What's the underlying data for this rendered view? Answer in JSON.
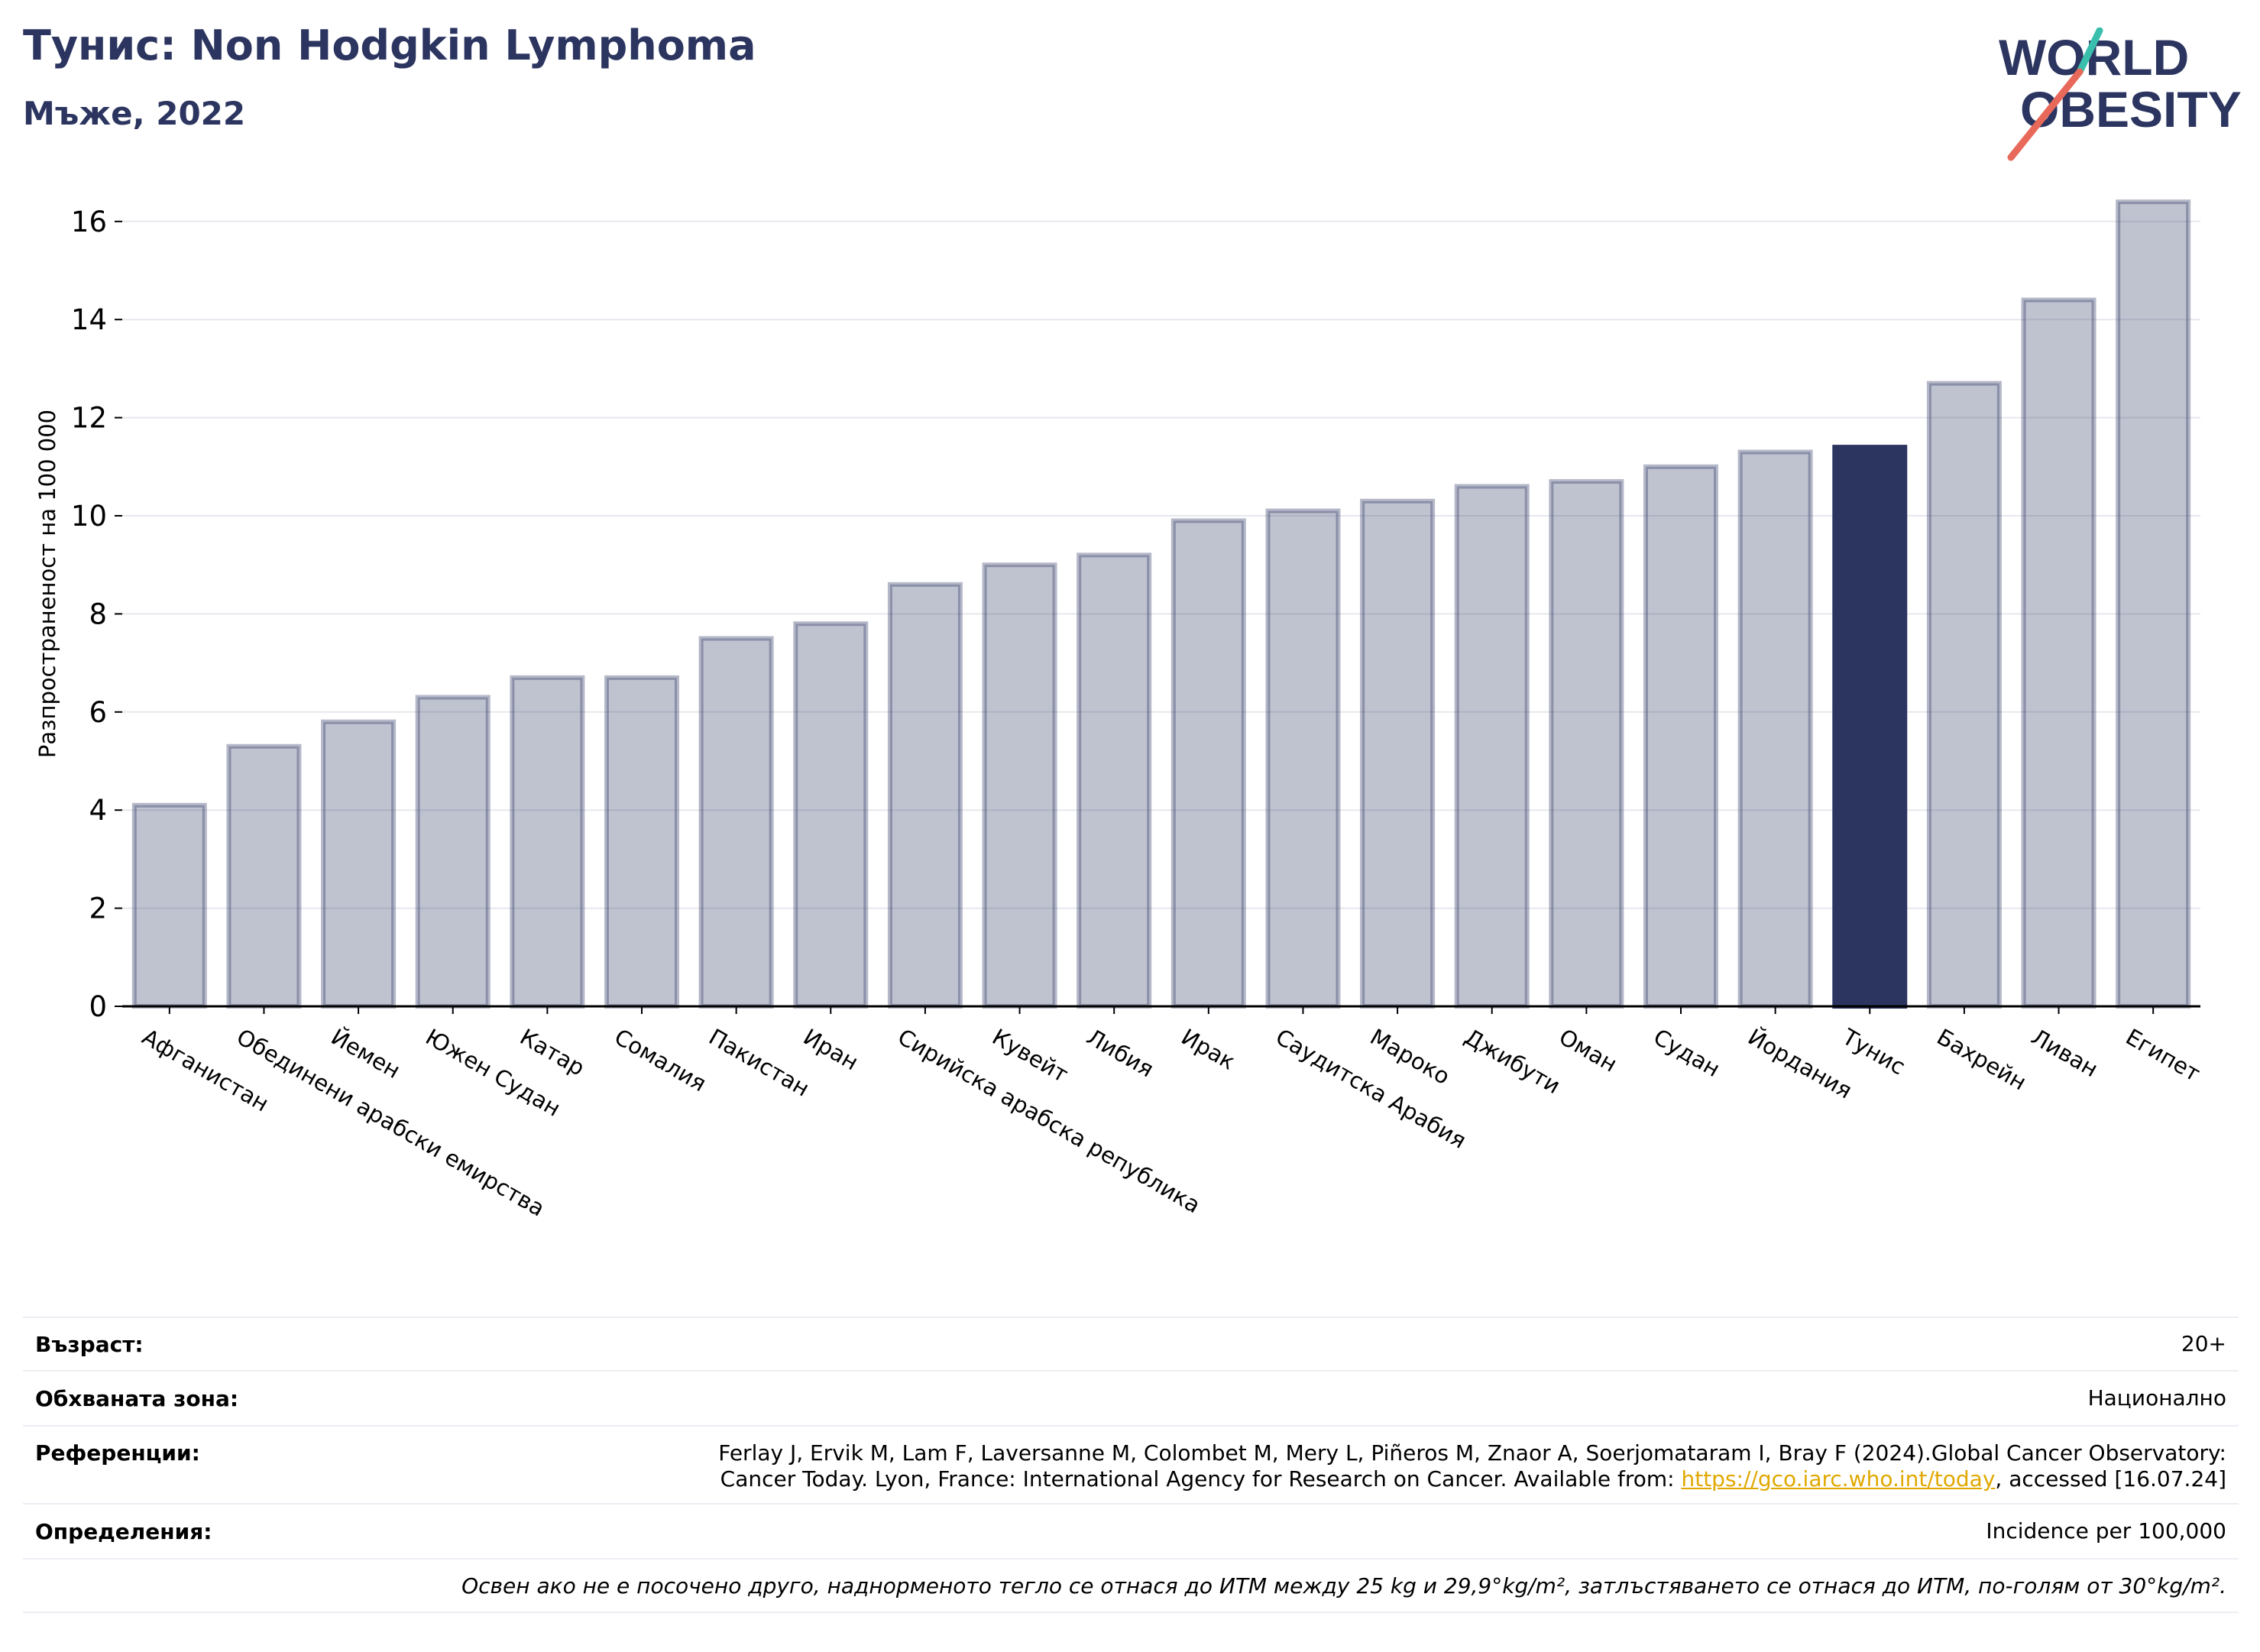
{
  "header": {
    "title": "Тунис: Non Hodgkin Lymphoma",
    "subtitle": "Мъже, 2022"
  },
  "logo": {
    "line1": "WORLD",
    "line2": "OBESITY",
    "colors": {
      "text": "#2b3560",
      "slash_top": "#3bbfad",
      "slash_bottom": "#e8685a"
    }
  },
  "chart_data": {
    "type": "bar",
    "title": "",
    "xlabel": "",
    "ylabel": "Разпространеност  на 100 000",
    "ylim": [
      0,
      17
    ],
    "yticks": [
      0,
      2,
      4,
      6,
      8,
      10,
      12,
      14,
      16
    ],
    "grid": true,
    "highlight": "Тунис",
    "colors": {
      "bar": "#2b3560",
      "bar_fill_opacity": 0.3,
      "highlight": "#2b3560",
      "grid": "#e6e8ee",
      "axis": "#000000"
    },
    "categories": [
      "Афганистан",
      "Обединени арабски емирства",
      "Йемен",
      "Южен Судан",
      "Катар",
      "Сомалия",
      "Пакистан",
      "Иран",
      "Сирийска арабска република",
      "Кувейт",
      "Либия",
      "Ирак",
      "Саудитска Арабия",
      "Мароко",
      "Джибути",
      "Оман",
      "Судан",
      "Йордания",
      "Тунис",
      "Бахрейн",
      "Ливан",
      "Египет"
    ],
    "values": [
      4.1,
      5.3,
      5.8,
      6.3,
      6.7,
      6.7,
      7.5,
      7.8,
      8.6,
      9.0,
      9.2,
      9.9,
      10.1,
      10.3,
      10.6,
      10.7,
      11.0,
      11.3,
      11.4,
      12.7,
      14.4,
      16.4
    ]
  },
  "info": {
    "age_label": "Възраст:",
    "age_value": "20+",
    "coverage_label": "Обхваната зона:",
    "coverage_value": "Национално",
    "references_label": "Референции:",
    "references_line1": "Ferlay J, Ervik M, Lam F, Laversanne M, Colombet M, Mery L, Piñeros M, Znaor A, Soerjomataram I, Bray F (2024).Global Cancer Observatory:",
    "references_line2_prefix": "Cancer Today. Lyon, France: International Agency for Research on Cancer. Available from: ",
    "references_link": "https://gco.iarc.who.int/today",
    "references_line2_suffix": ", accessed [16.07.24]",
    "definitions_label": "Определения:",
    "definitions_value": "Incidence per 100,000",
    "note": "Освен ако не е посочено друго, наднорменото тегло се отнася до ИТМ между 25 kg и 29,9°kg/m², затлъстяването се отнася до ИТМ, по-голям от 30°kg/m²."
  }
}
